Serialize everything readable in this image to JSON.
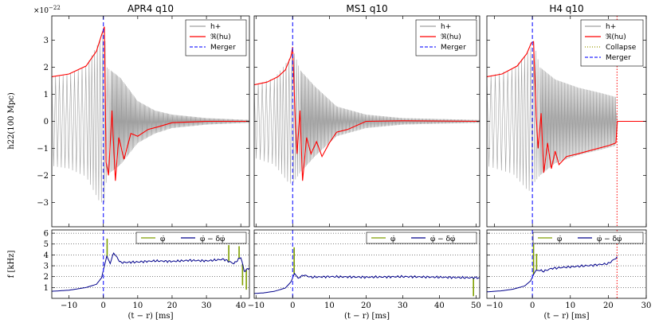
{
  "chart_data": {
    "type": "line",
    "description_units": {
      "strain_scale": "×10^−22",
      "frequency": "kHz",
      "time": "ms"
    },
    "shared": {
      "ylabel_strain": "h22(100 Mpc)",
      "ylabel_freq": "f [kHz]",
      "xlabel": "(t − r) [ms]",
      "strain_scale_label": "×10",
      "strain_scale_exp": "−22",
      "strain_ylim": [
        -3.9,
        3.9
      ],
      "strain_yticks": [
        -3,
        -2,
        -1,
        0,
        1,
        2,
        3
      ],
      "freq_ylim": [
        0,
        6.3
      ],
      "freq_yticks": [
        1,
        2,
        3,
        4,
        5,
        6
      ],
      "colors": {
        "h_plus": "#a0a0a0",
        "amplitude": "#ff0000",
        "merger": "#2a2aff",
        "collapse": "#ff0000",
        "phi_dot": "#7f9f00",
        "phi_dot_smooth": "#00008b",
        "grid": "#000000"
      }
    },
    "panels": [
      {
        "title": "APR4 q10",
        "xlim": [
          -15,
          42.5
        ],
        "xticks": [
          -10,
          0,
          10,
          20,
          30,
          40
        ],
        "merger_time": 0,
        "collapse_time": null,
        "strain_legend": [
          "h+",
          "ℜ(hu)",
          "Merger"
        ],
        "freq_legend": [
          "φ̇",
          "φ̇ − δφ̇"
        ],
        "amplitude_points": [
          [
            -15,
            1.65
          ],
          [
            -10,
            1.75
          ],
          [
            -5,
            2.05
          ],
          [
            -2,
            2.6
          ],
          [
            -0.5,
            3.2
          ],
          [
            0.3,
            3.5
          ],
          [
            0.8,
            -1.5
          ],
          [
            1.5,
            -2.0
          ],
          [
            2.5,
            0.4
          ],
          [
            3.5,
            -2.2
          ],
          [
            4.5,
            -0.6
          ],
          [
            6,
            -1.4
          ],
          [
            8,
            -0.45
          ],
          [
            10,
            -0.55
          ],
          [
            13,
            -0.3
          ],
          [
            16,
            -0.2
          ],
          [
            20,
            -0.05
          ],
          [
            30,
            0.0
          ],
          [
            42.5,
            0.0
          ]
        ],
        "strain_envelope": [
          [
            -15,
            1.65,
            -1.65
          ],
          [
            -10,
            1.75,
            -1.75
          ],
          [
            -5,
            2.05,
            -2.05
          ],
          [
            -1,
            3.0,
            -3.0
          ],
          [
            0.3,
            3.45,
            -3.0
          ],
          [
            1,
            2.0,
            -2.0
          ],
          [
            5,
            1.6,
            -1.6
          ],
          [
            10,
            0.75,
            -0.8
          ],
          [
            15,
            0.4,
            -0.45
          ],
          [
            20,
            0.25,
            -0.25
          ],
          [
            30,
            0.12,
            -0.12
          ],
          [
            42.5,
            0.05,
            -0.05
          ]
        ],
        "frequency_smooth": [
          [
            -15,
            0.65
          ],
          [
            -10,
            0.75
          ],
          [
            -5,
            1.0
          ],
          [
            -2,
            1.3
          ],
          [
            -0.5,
            1.9
          ],
          [
            0,
            2.6
          ],
          [
            1,
            3.9
          ],
          [
            2,
            3.2
          ],
          [
            3,
            4.2
          ],
          [
            5,
            3.3
          ],
          [
            10,
            3.35
          ],
          [
            15,
            3.45
          ],
          [
            20,
            3.4
          ],
          [
            25,
            3.5
          ],
          [
            30,
            3.45
          ],
          [
            35,
            3.6
          ],
          [
            38,
            3.2
          ],
          [
            40,
            3.8
          ],
          [
            41,
            2.5
          ],
          [
            42.5,
            2.8
          ]
        ],
        "frequency_spikes": [
          [
            1.1,
            5.5
          ],
          [
            36.5,
            4.9
          ],
          [
            39.5,
            4.8
          ],
          [
            40.5,
            1.2
          ],
          [
            41.6,
            0.8
          ]
        ]
      },
      {
        "title": "MS1 q10",
        "xlim": [
          -10.5,
          51
        ],
        "xticks": [
          -10,
          0,
          10,
          20,
          30,
          40,
          50
        ],
        "merger_time": 0,
        "collapse_time": null,
        "strain_legend": [
          "h+",
          "ℜ(hu)",
          "Merger"
        ],
        "freq_legend": [
          "φ̇",
          "φ̇ − δφ̇"
        ],
        "amplitude_points": [
          [
            -10.5,
            1.35
          ],
          [
            -7,
            1.45
          ],
          [
            -4,
            1.65
          ],
          [
            -2,
            1.9
          ],
          [
            -0.5,
            2.4
          ],
          [
            0,
            2.75
          ],
          [
            0.7,
            0.1
          ],
          [
            1.2,
            -1.2
          ],
          [
            2,
            0.4
          ],
          [
            2.7,
            -2.2
          ],
          [
            3.8,
            -0.6
          ],
          [
            5,
            -1.2
          ],
          [
            6.5,
            -0.75
          ],
          [
            8,
            -1.3
          ],
          [
            10,
            -0.8
          ],
          [
            12,
            -0.4
          ],
          [
            15,
            -0.3
          ],
          [
            20,
            0.0
          ],
          [
            30,
            0.02
          ],
          [
            51,
            0.0
          ]
        ],
        "strain_envelope": [
          [
            -10.5,
            1.35,
            -1.35
          ],
          [
            -5,
            1.6,
            -1.6
          ],
          [
            -1,
            2.3,
            -2.3
          ],
          [
            0,
            2.7,
            -2.3
          ],
          [
            2,
            1.9,
            -1.9
          ],
          [
            6,
            1.3,
            -1.3
          ],
          [
            12,
            0.55,
            -0.55
          ],
          [
            20,
            0.25,
            -0.25
          ],
          [
            30,
            0.12,
            -0.12
          ],
          [
            51,
            0.05,
            -0.05
          ]
        ],
        "frequency_smooth": [
          [
            -10.5,
            0.45
          ],
          [
            -8,
            0.5
          ],
          [
            -5,
            0.65
          ],
          [
            -2,
            0.95
          ],
          [
            -0.5,
            1.5
          ],
          [
            0.5,
            2.3
          ],
          [
            1.5,
            1.85
          ],
          [
            3,
            2.15
          ],
          [
            5,
            1.95
          ],
          [
            10,
            2.0
          ],
          [
            20,
            1.95
          ],
          [
            30,
            2.0
          ],
          [
            40,
            1.95
          ],
          [
            48,
            1.9
          ],
          [
            51,
            1.9
          ]
        ],
        "frequency_spikes": [
          [
            0.4,
            4.7
          ],
          [
            49.3,
            0.2
          ]
        ]
      },
      {
        "title": "H4 q10",
        "xlim": [
          -12,
          30
        ],
        "xticks": [
          -10,
          0,
          10,
          20,
          30
        ],
        "merger_time": 0,
        "collapse_time": 22.3,
        "strain_legend": [
          "h+",
          "ℜ(hu)",
          "Collapse",
          "Merger"
        ],
        "freq_legend": [
          "φ̇",
          "φ̇ − δφ̇"
        ],
        "amplitude_points": [
          [
            -12,
            1.65
          ],
          [
            -8,
            1.75
          ],
          [
            -4,
            2.05
          ],
          [
            -1.5,
            2.5
          ],
          [
            -0.3,
            2.9
          ],
          [
            0.3,
            2.95
          ],
          [
            1,
            0.2
          ],
          [
            1.5,
            -1.0
          ],
          [
            2.3,
            0.3
          ],
          [
            3,
            -1.9
          ],
          [
            4,
            -0.8
          ],
          [
            5,
            -1.75
          ],
          [
            6,
            -1.1
          ],
          [
            7,
            -1.6
          ],
          [
            9,
            -1.3
          ],
          [
            12,
            -1.2
          ],
          [
            16,
            -1.05
          ],
          [
            20,
            -0.9
          ],
          [
            22,
            -0.8
          ],
          [
            22.4,
            0.0
          ],
          [
            30,
            0.0
          ]
        ],
        "strain_envelope": [
          [
            -12,
            1.65,
            -1.65
          ],
          [
            -5,
            1.95,
            -1.95
          ],
          [
            -1,
            2.6,
            -2.6
          ],
          [
            0.3,
            2.95,
            -2.3
          ],
          [
            2,
            2.0,
            -2.0
          ],
          [
            6,
            1.55,
            -1.55
          ],
          [
            12,
            1.25,
            -1.25
          ],
          [
            18,
            1.05,
            -1.05
          ],
          [
            22,
            0.9,
            -0.9
          ],
          [
            22.3,
            0.0,
            0.0
          ],
          [
            30,
            0.0,
            0.0
          ]
        ],
        "frequency_smooth": [
          [
            -12,
            0.6
          ],
          [
            -8,
            0.7
          ],
          [
            -5,
            0.85
          ],
          [
            -2,
            1.15
          ],
          [
            -0.5,
            1.6
          ],
          [
            0.3,
            2.2
          ],
          [
            1,
            2.6
          ],
          [
            3,
            2.5
          ],
          [
            5,
            2.75
          ],
          [
            8,
            2.85
          ],
          [
            12,
            2.95
          ],
          [
            16,
            3.05
          ],
          [
            20,
            3.2
          ],
          [
            22,
            3.7
          ],
          [
            22.4,
            3.8
          ]
        ],
        "frequency_spikes": [
          [
            0.3,
            5.0
          ],
          [
            1.1,
            4.1
          ]
        ]
      }
    ]
  }
}
